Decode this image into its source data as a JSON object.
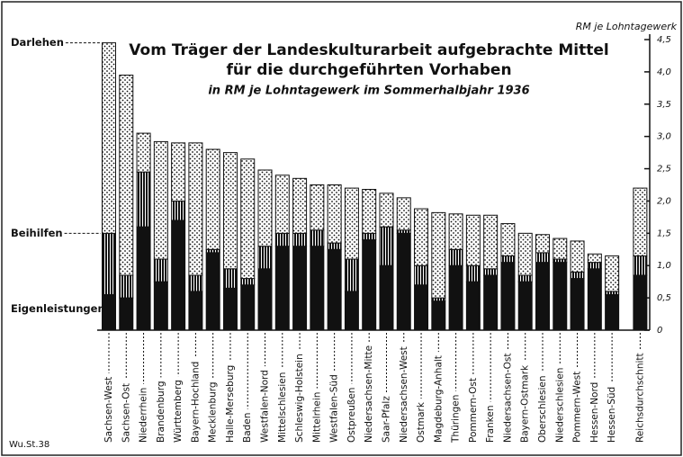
{
  "chart_data": {
    "type": "stacked_bar",
    "title": [
      "Vom Träger der Landeskulturarbeit aufgebrachte Mittel",
      "für die durchgeführten Vorhaben"
    ],
    "subtitle": "in RM je Lohntagewerk im Sommerhalbjahr 1936",
    "y_axis_label": "RM je Lohntagewerk",
    "footnote": "Wu.St.38",
    "categories": [
      "Sachsen-West",
      "Sachsen-Ost",
      "Niederrhein",
      "Brandenburg",
      "Württemberg",
      "Bayern-Hochland",
      "Mecklenburg",
      "Halle-Merseburg",
      "Baden",
      "Westfalen-Nord",
      "Mittelschlesien",
      "Schleswig-Holstein",
      "Mittelrhein",
      "Westfalen-Süd",
      "Ostpreußen",
      "Niedersachsen-Mitte",
      "Saar-Pfalz",
      "Niedersachsen-West",
      "Ostmark",
      "Magdeburg-Anhalt",
      "Thüringen",
      "Pommern-Ost",
      "Franken",
      "Niedersachsen-Ost",
      "Bayern-Ostmark",
      "Oberschlesien",
      "Niederschlesien",
      "Pommern-West",
      "Hessen-Nord",
      "Hessen-Süd",
      "Reichsdurchschnitt"
    ],
    "series": [
      {
        "name": "Eigenleistungen",
        "color": "#111111",
        "pattern": "solid",
        "values": [
          0.55,
          0.5,
          1.6,
          0.75,
          1.7,
          0.6,
          1.2,
          0.65,
          0.7,
          0.95,
          1.3,
          1.3,
          1.3,
          1.25,
          0.6,
          1.4,
          1.0,
          1.5,
          0.7,
          0.45,
          1.0,
          0.75,
          0.85,
          1.05,
          0.75,
          1.05,
          1.05,
          0.8,
          0.95,
          0.55,
          0.85
        ]
      },
      {
        "name": "Beihilfen",
        "color": "#111111",
        "pattern": "hatch",
        "values": [
          0.95,
          0.35,
          0.85,
          0.35,
          0.3,
          0.25,
          0.05,
          0.3,
          0.1,
          0.35,
          0.2,
          0.2,
          0.25,
          0.1,
          0.5,
          0.1,
          0.6,
          0.05,
          0.3,
          0.05,
          0.25,
          0.25,
          0.1,
          0.1,
          0.1,
          0.15,
          0.05,
          0.1,
          0.1,
          0.05,
          0.3
        ]
      },
      {
        "name": "Darlehen",
        "color": "#111111",
        "pattern": "dots",
        "values": [
          2.95,
          3.1,
          0.6,
          1.82,
          0.9,
          2.05,
          1.55,
          1.8,
          1.85,
          1.18,
          0.9,
          0.85,
          0.7,
          0.9,
          1.1,
          0.68,
          0.52,
          0.5,
          0.88,
          1.32,
          0.55,
          0.78,
          0.83,
          0.5,
          0.65,
          0.28,
          0.32,
          0.48,
          0.13,
          0.55,
          1.05
        ]
      }
    ],
    "ylim": [
      0,
      4.5
    ],
    "yticks": [
      0,
      {
        "value": 0.5,
        "label": "0,5"
      },
      {
        "value": 1,
        "label": "1,0"
      },
      {
        "value": 1.5,
        "label": "1,5"
      },
      {
        "value": 2,
        "label": "2,0"
      },
      {
        "value": 2.5,
        "label": "2,5"
      },
      {
        "value": 3,
        "label": "3,0"
      },
      {
        "value": 3.5,
        "label": "3,5"
      },
      {
        "value": 4,
        "label": "4,0"
      },
      {
        "value": 4.5,
        "label": "4,5"
      }
    ],
    "y_axis_side": "right"
  }
}
